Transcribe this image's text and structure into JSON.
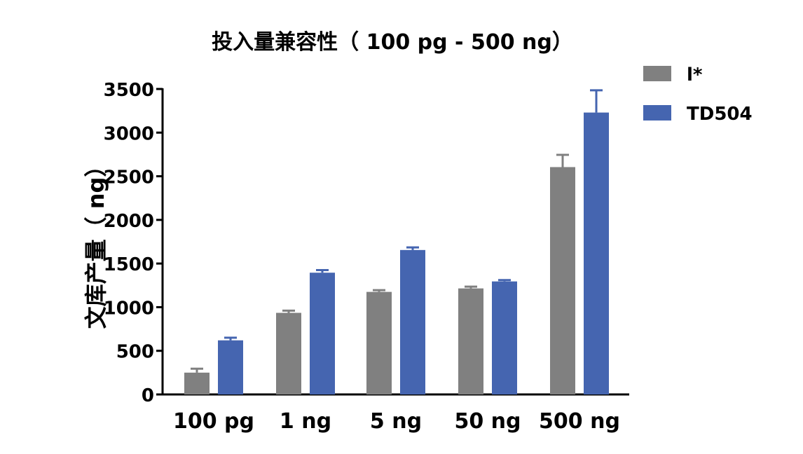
{
  "chart_data": {
    "type": "bar",
    "title": "投入量兼容性（ 100 pg - 500 ng）",
    "xlabel": "",
    "ylabel": "文库产量（ ng）",
    "categories": [
      "100 pg",
      "1 ng",
      "5 ng",
      "50 ng",
      "500 ng"
    ],
    "series": [
      {
        "name": "l*",
        "color": "#808080",
        "values": [
          250,
          935,
          1175,
          1215,
          2605
        ],
        "errors": [
          45,
          25,
          20,
          20,
          140
        ]
      },
      {
        "name": "TD504",
        "color": "#4565b0",
        "values": [
          620,
          1395,
          1655,
          1295,
          3230
        ],
        "errors": [
          30,
          30,
          30,
          15,
          255
        ]
      }
    ],
    "ylim": [
      0,
      3500
    ],
    "yticks": [
      0,
      500,
      1000,
      1500,
      2000,
      2500,
      3000,
      3500
    ],
    "grid": false,
    "legend_position": "top-right"
  }
}
